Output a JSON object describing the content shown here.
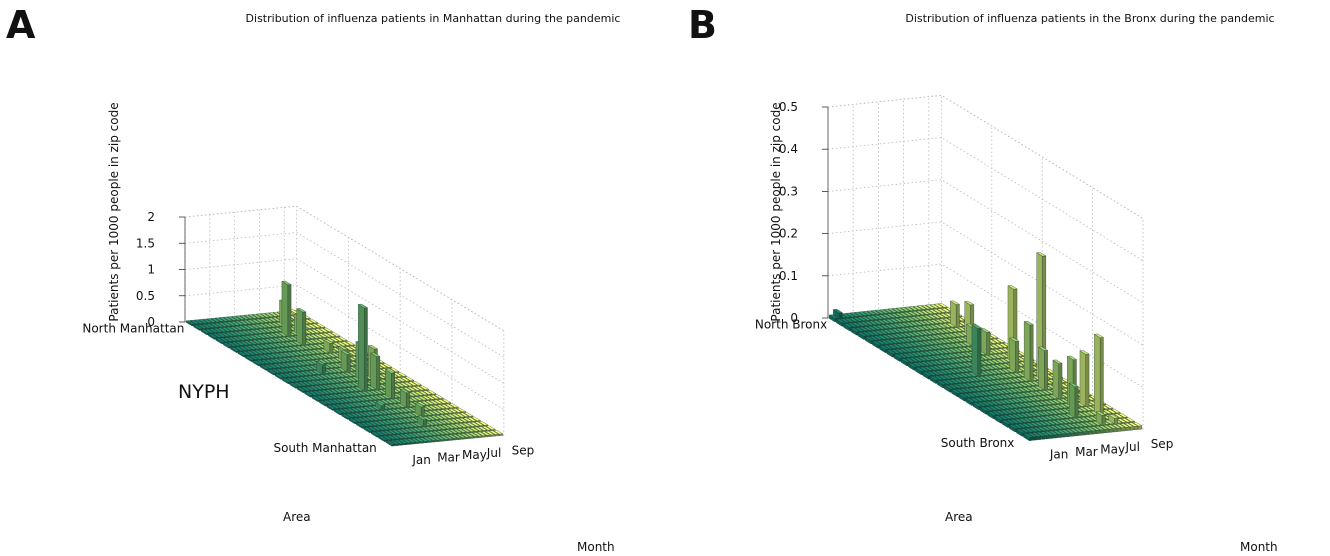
{
  "chart_data": [
    {
      "panel": "A",
      "type": "bar3d",
      "title": "Distribution of influenza patients in Manhattan during the pandemic",
      "xlabel": "Area",
      "ylabel": "Month",
      "zlabel": "Patients per 1000 people in zip code",
      "area_ticks": [
        "North Manhattan",
        "South Manhattan"
      ],
      "month_ticks": [
        "Jan",
        "Mar",
        "May",
        "Jul",
        "Sep"
      ],
      "zlim": [
        0,
        2
      ],
      "zticks": [
        "0",
        "0.5",
        "1",
        "1.5",
        "2"
      ],
      "annotation": "NYPH",
      "grid": true,
      "colormap": [
        "#0f7a6a",
        "#3f9f72",
        "#86c46b",
        "#f0f57a"
      ],
      "n_areas": 14,
      "n_months": 9,
      "bars": [
        {
          "area": 0,
          "month": 8,
          "value": 0.05
        },
        {
          "area": 1,
          "month": 6,
          "value": 0.45
        },
        {
          "area": 2,
          "month": 6,
          "value": 0.3
        },
        {
          "area": 2,
          "month": 5,
          "value": 1.0
        },
        {
          "area": 3,
          "month": 5,
          "value": 0.65
        },
        {
          "area": 4,
          "month": 6,
          "value": 0.2
        },
        {
          "area": 5,
          "month": 6,
          "value": 0.25
        },
        {
          "area": 6,
          "month": 5,
          "value": 0.35
        },
        {
          "area": 7,
          "month": 5,
          "value": 0.7
        },
        {
          "area": 7,
          "month": 6,
          "value": 0.6
        },
        {
          "area": 8,
          "month": 4,
          "value": 1.6
        },
        {
          "area": 8,
          "month": 5,
          "value": 0.65
        },
        {
          "area": 9,
          "month": 5,
          "value": 0.5
        },
        {
          "area": 10,
          "month": 5,
          "value": 0.3
        },
        {
          "area": 11,
          "month": 5,
          "value": 0.2
        },
        {
          "area": 12,
          "month": 4,
          "value": 0.15
        },
        {
          "area": 6,
          "month": 3,
          "value": 0.2
        },
        {
          "area": 10,
          "month": 3,
          "value": 0.1
        }
      ],
      "base": 0.03
    },
    {
      "panel": "B",
      "type": "bar3d",
      "title": "Distribution of influenza patients in the Bronx during the pandemic",
      "xlabel": "Area",
      "ylabel": "Month",
      "zlabel": "Patients per 1000 people in zip code",
      "area_ticks": [
        "North Bronx",
        "South Bronx"
      ],
      "month_ticks": [
        "Jan",
        "Mar",
        "May",
        "Jul",
        "Sep"
      ],
      "zlim": [
        0,
        0.5
      ],
      "zticks": [
        "0",
        "0.1",
        "0.2",
        "0.3",
        "0.4",
        "0.5"
      ],
      "grid": true,
      "colormap": [
        "#0f7a6a",
        "#3f9f72",
        "#86c46b",
        "#f0f57a"
      ],
      "n_areas": 14,
      "n_months": 9,
      "bars": [
        {
          "area": 0,
          "month": 0,
          "value": 0.02
        },
        {
          "area": 2,
          "month": 7,
          "value": 0.06
        },
        {
          "area": 3,
          "month": 7,
          "value": 0.08
        },
        {
          "area": 4,
          "month": 6,
          "value": 0.05
        },
        {
          "area": 5,
          "month": 6,
          "value": 0.06
        },
        {
          "area": 6,
          "month": 7,
          "value": 0.18
        },
        {
          "area": 7,
          "month": 3,
          "value": 0.12
        },
        {
          "area": 7,
          "month": 6,
          "value": 0.08
        },
        {
          "area": 8,
          "month": 7,
          "value": 0.3
        },
        {
          "area": 8,
          "month": 6,
          "value": 0.14
        },
        {
          "area": 9,
          "month": 6,
          "value": 0.1
        },
        {
          "area": 10,
          "month": 6,
          "value": 0.09
        },
        {
          "area": 11,
          "month": 6,
          "value": 0.12
        },
        {
          "area": 11,
          "month": 7,
          "value": 0.13
        },
        {
          "area": 12,
          "month": 7,
          "value": 0.19
        },
        {
          "area": 12,
          "month": 5,
          "value": 0.08
        },
        {
          "area": 13,
          "month": 6,
          "value": 0.03
        },
        {
          "area": 13,
          "month": 7,
          "value": 0.02
        }
      ],
      "base": 0.008
    }
  ]
}
